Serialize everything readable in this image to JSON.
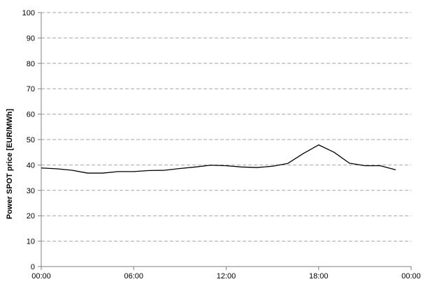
{
  "chart_data": {
    "type": "line",
    "title": "",
    "xlabel": "",
    "ylabel": "Power SPOT price [EUR/MWh]",
    "ylim": [
      0,
      100
    ],
    "xlim": [
      "00:00",
      "24:00"
    ],
    "yticks": [
      0,
      10,
      20,
      30,
      40,
      50,
      60,
      70,
      80,
      90,
      100
    ],
    "xtick_labels": [
      "00:00",
      "06:00",
      "12:00",
      "18:00",
      "00:00"
    ],
    "grid": "horizontal dashed",
    "series": [
      {
        "x": [
          "00:00",
          "01:00",
          "02:00",
          "03:00",
          "04:00",
          "05:00",
          "06:00",
          "07:00",
          "08:00",
          "09:00",
          "10:00",
          "11:00",
          "12:00",
          "13:00",
          "14:00",
          "15:00",
          "16:00",
          "17:00",
          "18:00",
          "19:00",
          "20:00",
          "21:00",
          "22:00",
          "23:00"
        ],
        "values": [
          38.8,
          38.5,
          37.9,
          36.8,
          36.8,
          37.4,
          37.4,
          37.8,
          37.9,
          38.6,
          39.2,
          39.9,
          39.7,
          39.2,
          39.0,
          39.5,
          40.6,
          44.5,
          47.9,
          45.0,
          40.7,
          39.7,
          39.7,
          38.1
        ],
        "color": "#000000"
      }
    ]
  }
}
